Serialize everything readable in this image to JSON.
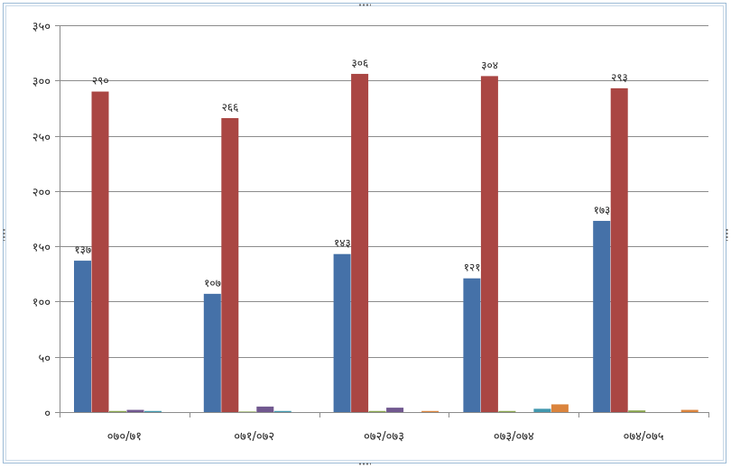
{
  "chart_data": {
    "type": "bar",
    "categories": [
      "०७०/७१",
      "०७१/०७२",
      "०७२/०७३",
      "०७३/०७४",
      "०७४/०७५"
    ],
    "ylim": [
      0,
      350
    ],
    "yticks": [
      0,
      50,
      100,
      150,
      200,
      250,
      300,
      350
    ],
    "ytick_labels": [
      "०",
      "५०",
      "१००",
      "१५०",
      "२००",
      "२५०",
      "३००",
      "३५०"
    ],
    "grid": true,
    "legend": "none",
    "series": [
      {
        "color": "#4571a8",
        "values": [
          137,
          107,
          143,
          121,
          173
        ],
        "labels": [
          "१३७",
          "१०७",
          "१४३",
          "१२१",
          "१७३"
        ]
      },
      {
        "color": "#aa4643",
        "values": [
          290,
          266,
          306,
          304,
          293
        ],
        "labels": [
          "२९०",
          "२६६",
          "३०६",
          "३०४",
          "२९३"
        ]
      },
      {
        "color": "#89a54e",
        "values": [
          1,
          0.5,
          1,
          1,
          1.5
        ]
      },
      {
        "color": "#71588f",
        "values": [
          2,
          5,
          4,
          0,
          0
        ]
      },
      {
        "color": "#4198af",
        "values": [
          1,
          1,
          0,
          3,
          0
        ]
      },
      {
        "color": "#db843d",
        "values": [
          0,
          0,
          1,
          7,
          2
        ]
      }
    ]
  }
}
